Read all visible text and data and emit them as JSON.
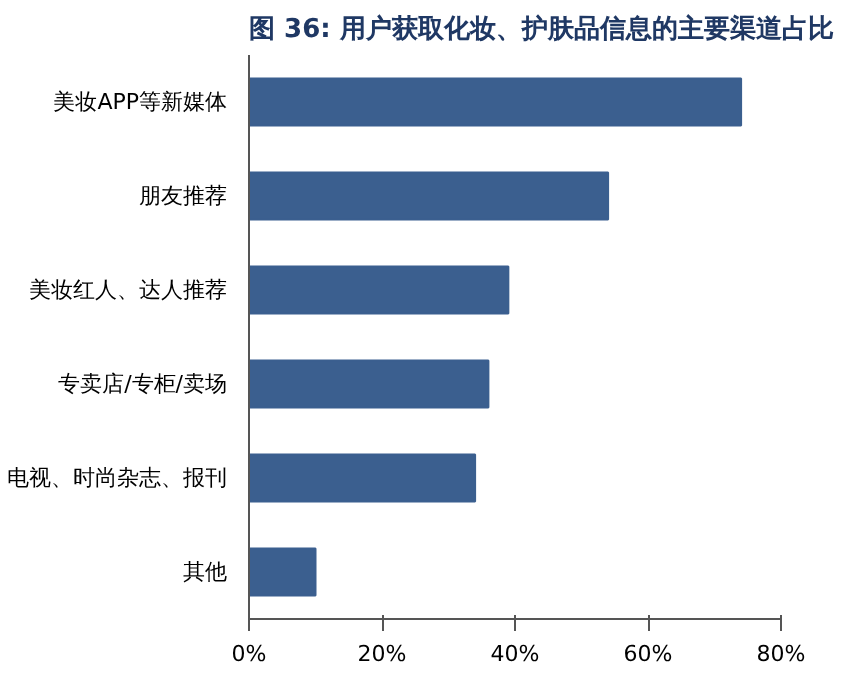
{
  "chart_data": {
    "type": "bar",
    "orientation": "horizontal",
    "title": "图 36: 用户获取化妆、护肤品信息的主要渠道占比",
    "categories": [
      "美妆APP等新媒体",
      "朋友推荐",
      "美妆红人、达人推荐",
      "专卖店/专柜/卖场",
      "电视、时尚杂志、报刊",
      "其他"
    ],
    "values": [
      74,
      54,
      39,
      36,
      34,
      10
    ],
    "color": "#3b5f8f",
    "xlim": [
      0,
      80
    ],
    "xticks": [
      {
        "value": 0,
        "label": "0%"
      },
      {
        "value": 20,
        "label": "20%"
      },
      {
        "value": 40,
        "label": "40%"
      },
      {
        "value": 60,
        "label": "60%"
      },
      {
        "value": 80,
        "label": "80%"
      }
    ],
    "grid": false
  }
}
